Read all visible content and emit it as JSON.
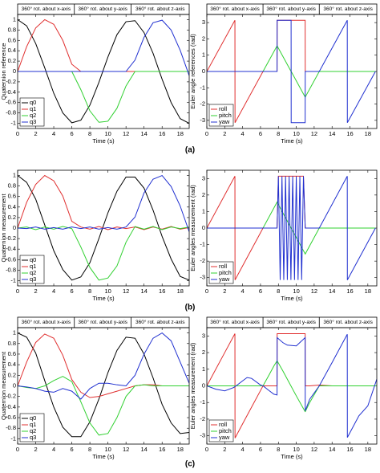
{
  "captions": [
    "(a)",
    "(b)",
    "(c)"
  ],
  "chart_data": [
    {
      "type": "line",
      "xlabel": "Time (s)",
      "ylabel": "Quaternion reference",
      "annotations": [
        "360° rot. about x-axis",
        "360° rot. about y-axis",
        "360° rot. about z-axis"
      ],
      "header_dividers": [
        6.28,
        12.57
      ],
      "x": [
        0,
        1,
        2,
        3,
        4,
        5,
        6,
        7,
        8,
        9,
        10,
        11,
        12,
        13,
        14,
        15,
        16,
        17,
        18,
        19
      ],
      "series": [
        {
          "name": "q0",
          "color": "#000000",
          "values": [
            1,
            0.88,
            0.54,
            0.07,
            -0.42,
            -0.8,
            -0.99,
            -0.94,
            -0.65,
            -0.21,
            0.28,
            0.71,
            0.96,
            0.98,
            0.75,
            0.35,
            -0.15,
            -0.6,
            -0.91,
            -1
          ]
        },
        {
          "name": "q1",
          "color": "#e03030",
          "values": [
            0,
            0.48,
            0.84,
            1,
            0.91,
            0.6,
            0.14,
            0,
            0,
            0,
            0,
            0,
            0,
            0,
            0,
            0,
            0,
            0,
            0,
            0
          ]
        },
        {
          "name": "q2",
          "color": "#30d030",
          "values": [
            0,
            0,
            0,
            0,
            0,
            0,
            0,
            -0.35,
            -0.76,
            -0.98,
            -0.96,
            -0.71,
            -0.28,
            0,
            0,
            0,
            0,
            0,
            0,
            0
          ]
        },
        {
          "name": "q3",
          "color": "#2030d0",
          "values": [
            0,
            0,
            0,
            0,
            0,
            0,
            0,
            0,
            0,
            0,
            0,
            0,
            0,
            0.22,
            0.66,
            0.94,
            0.99,
            0.8,
            0.41,
            -0.08
          ]
        }
      ],
      "xlim": [
        0,
        19
      ],
      "xticks": [
        0,
        2,
        4,
        6,
        8,
        10,
        12,
        14,
        16,
        18
      ],
      "ylim": [
        -1.1,
        1.1
      ],
      "yticks": [
        -1,
        -0.8,
        -0.6,
        -0.4,
        -0.2,
        0,
        0.2,
        0.4,
        0.6,
        0.8,
        1
      ],
      "legend": "lower left"
    },
    {
      "type": "line",
      "xlabel": "Time (s)",
      "ylabel": "Euler angle references (rad)",
      "annotations": [
        "360° rot. about x-axis",
        "360° rot. about y-axis",
        "360° rot. about z-axis"
      ],
      "header_dividers": [
        6.28,
        12.57
      ],
      "x": [
        0,
        3.14,
        3.15,
        6.28,
        7.85,
        7.86,
        9.42,
        9.43,
        10.99,
        11,
        12.57,
        15.7,
        15.71,
        18.85
      ],
      "series": [
        {
          "name": "roll",
          "color": "#e03030",
          "values": [
            0,
            3.14,
            -3.14,
            0,
            0,
            3.14,
            3.14,
            3.14,
            3.14,
            0,
            0,
            0,
            0,
            0
          ]
        },
        {
          "name": "pitch",
          "color": "#30d030",
          "values": [
            0,
            0,
            0,
            0,
            1.57,
            1.57,
            0,
            0,
            -1.57,
            -1.57,
            0,
            0,
            0,
            0
          ]
        },
        {
          "name": "yaw",
          "color": "#2030d0",
          "values": [
            0,
            0,
            0,
            0,
            0,
            3.14,
            3.14,
            -3.14,
            -3.14,
            0,
            0,
            3.14,
            -3.14,
            0
          ]
        }
      ],
      "xlim": [
        0,
        19
      ],
      "xticks": [
        0,
        2,
        4,
        6,
        8,
        10,
        12,
        14,
        16,
        18
      ],
      "ylim": [
        -3.5,
        3.5
      ],
      "yticks": [
        -3,
        -2,
        -1,
        0,
        1,
        2,
        3
      ],
      "legend": "lower left"
    },
    {
      "type": "line",
      "xlabel": "Time (s)",
      "ylabel": "Quaternion measurement",
      "x": [
        0,
        1,
        2,
        3,
        4,
        5,
        6,
        7,
        8,
        9,
        10,
        11,
        12,
        13,
        14,
        15,
        16,
        17,
        18,
        19
      ],
      "series": [
        {
          "name": "q0",
          "color": "#000000",
          "values": [
            1,
            0.87,
            0.55,
            0.06,
            -0.43,
            -0.79,
            -0.99,
            -0.93,
            -0.66,
            -0.2,
            0.29,
            0.7,
            0.97,
            0.97,
            0.76,
            0.34,
            -0.16,
            -0.59,
            -0.92,
            -0.99
          ]
        },
        {
          "name": "q1",
          "color": "#e03030",
          "values": [
            0,
            0.49,
            0.83,
            1,
            0.9,
            0.61,
            0.13,
            0.02,
            -0.02,
            0.03,
            -0.03,
            0.02,
            -0.01,
            0.02,
            -0.03,
            0.02,
            -0.02,
            0.03,
            -0.02,
            0.01
          ]
        },
        {
          "name": "q2",
          "color": "#30d030",
          "values": [
            0,
            0.02,
            -0.03,
            0.02,
            -0.02,
            0.03,
            -0.01,
            -0.36,
            -0.75,
            -0.99,
            -0.95,
            -0.72,
            -0.27,
            0.03,
            -0.02,
            0.03,
            -0.03,
            0.02,
            -0.01,
            0.02
          ]
        },
        {
          "name": "q3",
          "color": "#2030d0",
          "values": [
            0,
            -0.01,
            0.02,
            -0.02,
            0.01,
            -0.02,
            0.02,
            -0.01,
            0.02,
            -0.02,
            0.01,
            -0.02,
            0.02,
            0.21,
            0.67,
            0.93,
            1,
            0.79,
            0.42,
            -0.07
          ]
        }
      ],
      "xlim": [
        0,
        19
      ],
      "xticks": [
        0,
        2,
        4,
        6,
        8,
        10,
        12,
        14,
        16,
        18
      ],
      "ylim": [
        -1.1,
        1.1
      ],
      "yticks": [
        -1,
        -0.8,
        -0.6,
        -0.4,
        -0.2,
        0,
        0.2,
        0.4,
        0.6,
        0.8,
        1
      ],
      "legend": "lower left"
    },
    {
      "type": "line",
      "xlabel": "Time (s)",
      "ylabel": "Euler angles measurement (rad)",
      "x": [
        0,
        3.14,
        3.15,
        6.28,
        7.85,
        8,
        8.2,
        8.4,
        8.6,
        8.8,
        9,
        9.2,
        9.4,
        9.6,
        9.8,
        10,
        10.2,
        10.4,
        10.6,
        10.8,
        11,
        12.57,
        15.7,
        15.71,
        18.85
      ],
      "series": [
        {
          "name": "roll",
          "color": "#e03030",
          "values": [
            0,
            3.14,
            -3.14,
            0,
            0,
            3.14,
            3.14,
            3.14,
            3.14,
            3.14,
            3.14,
            3.14,
            3.14,
            3.14,
            3.14,
            3.14,
            3.14,
            3.14,
            3.14,
            3.14,
            0,
            0,
            0,
            0,
            0
          ]
        },
        {
          "name": "pitch",
          "color": "#30d030",
          "values": [
            0,
            0,
            0,
            0,
            1.57,
            1.42,
            1.22,
            1.02,
            0.82,
            0.62,
            0.42,
            0.22,
            0.02,
            -0.18,
            -0.37,
            -0.57,
            -0.77,
            -0.97,
            -1.17,
            -1.37,
            -1.57,
            0,
            0,
            0,
            0
          ]
        },
        {
          "name": "yaw",
          "color": "#2030d0",
          "values": [
            0,
            0,
            0,
            0,
            0,
            3.14,
            -3.14,
            3.14,
            -3.14,
            3.14,
            -3.14,
            3.14,
            -3.14,
            3.14,
            -3.14,
            3.14,
            -3.14,
            3.14,
            -3.14,
            3.14,
            0,
            0,
            3.14,
            -3.14,
            0
          ]
        }
      ],
      "xlim": [
        0,
        19
      ],
      "xticks": [
        0,
        2,
        4,
        6,
        8,
        10,
        12,
        14,
        16,
        18
      ],
      "ylim": [
        -3.5,
        3.5
      ],
      "yticks": [
        -3,
        -2,
        -1,
        0,
        1,
        2,
        3
      ],
      "legend": "lower left"
    },
    {
      "type": "line",
      "xlabel": "Time (s)",
      "ylabel": "Quaternion measurement",
      "annotations": [
        "360° rot. about x-axis",
        "360° rot. about y-axis",
        "360° rot. about z-axis"
      ],
      "header_dividers": [
        6.28,
        12.57
      ],
      "x": [
        0,
        1,
        2,
        3,
        4,
        5,
        6,
        7,
        8,
        9,
        10,
        11,
        12,
        13,
        14,
        15,
        16,
        17,
        18,
        19
      ],
      "series": [
        {
          "name": "q0",
          "color": "#000000",
          "values": [
            1,
            0.92,
            0.62,
            0.1,
            -0.4,
            -0.78,
            -0.96,
            -0.96,
            -0.68,
            -0.25,
            0.25,
            0.67,
            0.92,
            0.9,
            0.6,
            0.15,
            -0.35,
            -0.7,
            -0.9,
            -0.88
          ]
        },
        {
          "name": "q1",
          "color": "#e03030",
          "values": [
            0,
            0.45,
            0.82,
            0.98,
            0.9,
            0.58,
            0.12,
            -0.12,
            -0.22,
            -0.2,
            -0.15,
            -0.1,
            -0.05,
            0,
            0.02,
            0.02,
            0,
            0,
            0,
            0
          ]
        },
        {
          "name": "q2",
          "color": "#30d030",
          "values": [
            0,
            -0.03,
            -0.05,
            0,
            0.1,
            0.18,
            0.08,
            -0.3,
            -0.7,
            -0.93,
            -0.9,
            -0.6,
            -0.2,
            0,
            0.02,
            0,
            0,
            0,
            0,
            0
          ]
        },
        {
          "name": "q3",
          "color": "#2030d0",
          "values": [
            0,
            -0.02,
            -0.05,
            -0.1,
            -0.12,
            -0.05,
            -0.1,
            -0.25,
            -0.05,
            0.05,
            0.05,
            0.02,
            0,
            0.2,
            0.6,
            0.9,
            1,
            0.85,
            0.45,
            0.05
          ]
        }
      ],
      "xlim": [
        0,
        19
      ],
      "xticks": [
        0,
        2,
        4,
        6,
        8,
        10,
        12,
        14,
        16,
        18
      ],
      "ylim": [
        -1.1,
        1.1
      ],
      "yticks": [
        -1,
        -0.8,
        -0.6,
        -0.4,
        -0.2,
        0,
        0.2,
        0.4,
        0.6,
        0.8,
        1
      ],
      "legend": "lower left"
    },
    {
      "type": "line",
      "xlabel": "Time (s)",
      "ylabel": "Euler angles measurement (rad)",
      "annotations": [
        "360° rot. about x-axis",
        "360° rot. about y-axis",
        "360° rot. about z-axis"
      ],
      "header_dividers": [
        6.28,
        12.57
      ],
      "x": [
        0,
        1,
        2,
        3,
        3.14,
        3.15,
        4,
        4.5,
        5,
        6,
        6.28,
        7,
        7.5,
        7.85,
        7.86,
        8.5,
        9,
        10,
        10.99,
        11,
        11.5,
        12.57,
        14,
        15.7,
        15.71,
        17,
        18,
        19
      ],
      "series": [
        {
          "name": "roll",
          "color": "#e03030",
          "values": [
            0,
            1,
            2,
            3,
            3.14,
            -3.14,
            -2.28,
            -1.78,
            -1.28,
            -0.28,
            0,
            0,
            0,
            0,
            3.14,
            3.14,
            3.14,
            3.14,
            3.14,
            0,
            0,
            0.05,
            0,
            0,
            0,
            0,
            0,
            0
          ]
        },
        {
          "name": "pitch",
          "color": "#30d030",
          "values": [
            0,
            0,
            0,
            0,
            0,
            0,
            0,
            0,
            0,
            0,
            0,
            0.7,
            1.2,
            1.5,
            1.5,
            0.9,
            0.4,
            -0.6,
            -1.55,
            -1.55,
            -1,
            0,
            0,
            0,
            0,
            0,
            0,
            0
          ]
        },
        {
          "name": "yaw",
          "color": "#2030d0",
          "values": [
            0,
            -0.2,
            -0.3,
            -0.1,
            -0.05,
            -0.05,
            0.3,
            0.5,
            0.45,
            0.05,
            0,
            -0.3,
            -0.5,
            -0.55,
            2.9,
            2.6,
            2.45,
            2.4,
            2.9,
            -1.5,
            -0.8,
            0,
            1.4,
            3.1,
            -3.1,
            -1.8,
            -1.2,
            0.4
          ]
        }
      ],
      "xlim": [
        0,
        19
      ],
      "xticks": [
        0,
        2,
        4,
        6,
        8,
        10,
        12,
        14,
        16,
        18
      ],
      "ylim": [
        -3.5,
        3.5
      ],
      "yticks": [
        -3,
        -2,
        -1,
        0,
        1,
        2,
        3
      ],
      "legend": "lower left"
    }
  ]
}
